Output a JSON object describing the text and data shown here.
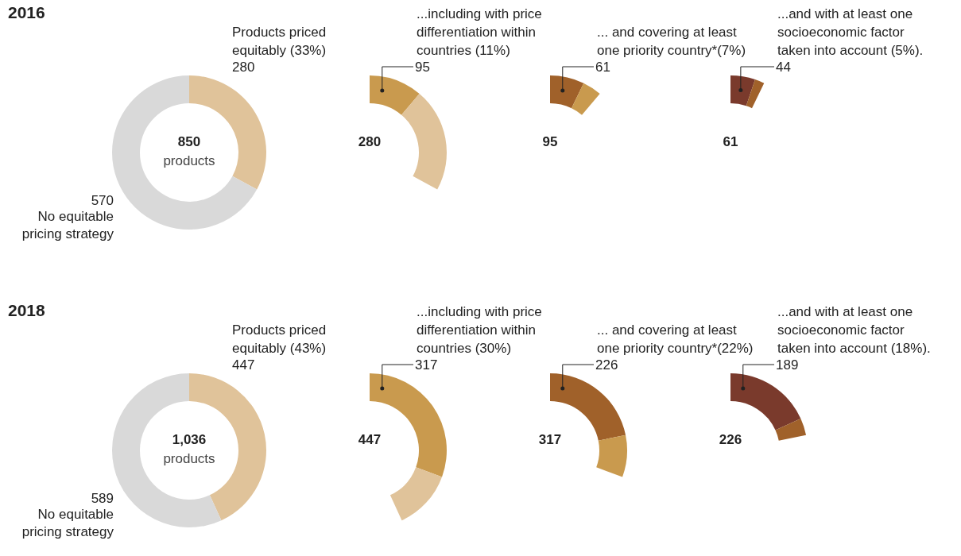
{
  "chart_data": [
    {
      "type": "donut",
      "title": "2016",
      "categories": [
        "Products priced equitably (33%)",
        "No equitable pricing strategy"
      ],
      "values": [
        280,
        570
      ],
      "colors": [
        "#e0c39a",
        "#d9d9d9"
      ],
      "value_labels": [
        "280",
        "570"
      ],
      "annotations": [
        "850",
        "products"
      ]
    },
    {
      "type": "donut",
      "categories": [
        "...including with price differentiation within countries (11%)",
        null
      ],
      "values": [
        95,
        185
      ],
      "colors": [
        "#c99a4e",
        "#e0c39a"
      ],
      "value_labels": [
        "95",
        null
      ],
      "annotations": [
        "280"
      ]
    },
    {
      "type": "donut",
      "categories": [
        "... and covering at least one priority country*(7%)",
        null
      ],
      "values": [
        61,
        34
      ],
      "colors": [
        "#a0612a",
        "#c99a4e"
      ],
      "value_labels": [
        "61",
        null
      ],
      "annotations": [
        "95"
      ]
    },
    {
      "type": "donut",
      "categories": [
        "...and with at least one socioeconomic factor taken into account (5%).",
        null
      ],
      "values": [
        44,
        17
      ],
      "colors": [
        "#7a3a2c",
        "#a0612a"
      ],
      "value_labels": [
        "44",
        null
      ],
      "annotations": [
        "61"
      ]
    },
    {
      "type": "donut",
      "title": "2018",
      "categories": [
        "Products priced equitably (43%)",
        "No equitable pricing strategy"
      ],
      "values": [
        447,
        589
      ],
      "colors": [
        "#e0c39a",
        "#d9d9d9"
      ],
      "value_labels": [
        "447",
        "589"
      ],
      "annotations": [
        "1,036",
        "products"
      ]
    },
    {
      "type": "donut",
      "categories": [
        "...including with price differentiation within countries (30%)",
        null
      ],
      "values": [
        317,
        130
      ],
      "colors": [
        "#c99a4e",
        "#e0c39a"
      ],
      "value_labels": [
        "317",
        null
      ],
      "annotations": [
        "447"
      ]
    },
    {
      "type": "donut",
      "categories": [
        "... and covering at least one priority country*(22%)",
        null
      ],
      "values": [
        226,
        91
      ],
      "colors": [
        "#a0612a",
        "#c99a4e"
      ],
      "value_labels": [
        "226",
        null
      ],
      "annotations": [
        "317"
      ]
    },
    {
      "type": "donut",
      "categories": [
        "...and with at least one socioeconomic factor taken into account (18%).",
        null
      ],
      "values": [
        189,
        37
      ],
      "colors": [
        "#7a3a2c",
        "#a0612a"
      ],
      "value_labels": [
        "189",
        null
      ],
      "annotations": [
        "226"
      ]
    }
  ]
}
